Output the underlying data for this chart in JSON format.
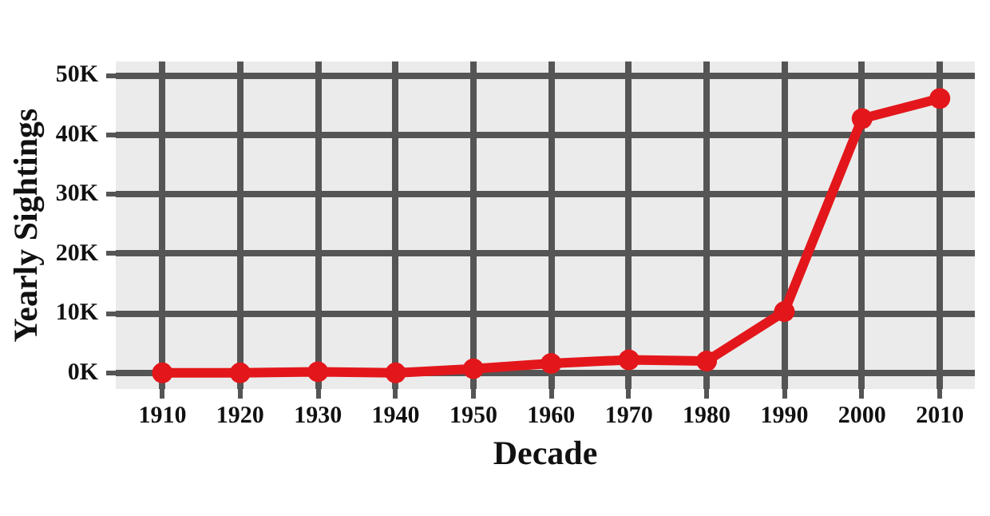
{
  "chart_data": {
    "type": "line",
    "xlabel": "Decade",
    "ylabel": "Yearly Sightings",
    "x": [
      1910,
      1920,
      1930,
      1940,
      1950,
      1960,
      1970,
      1980,
      1990,
      2000,
      2010
    ],
    "series": [
      {
        "color": "#e3171b",
        "values": [
          0,
          0,
          200,
          0,
          700,
          1600,
          2200,
          2000,
          10300,
          42700,
          46100
        ]
      }
    ],
    "xlim": [
      1904,
      2014.5
    ],
    "ylim": [
      -2700,
      52300
    ],
    "xticks": [
      1910,
      1920,
      1930,
      1940,
      1950,
      1960,
      1970,
      1980,
      1990,
      2000,
      2010
    ],
    "yticks": [
      {
        "value": 0,
        "label": "0K"
      },
      {
        "value": 10000,
        "label": "10K"
      },
      {
        "value": 20000,
        "label": "20K"
      },
      {
        "value": 30000,
        "label": "30K"
      },
      {
        "value": 40000,
        "label": "40K"
      },
      {
        "value": 50000,
        "label": "50K"
      }
    ],
    "grid": true,
    "marker": "circle",
    "line_style": "solid"
  }
}
